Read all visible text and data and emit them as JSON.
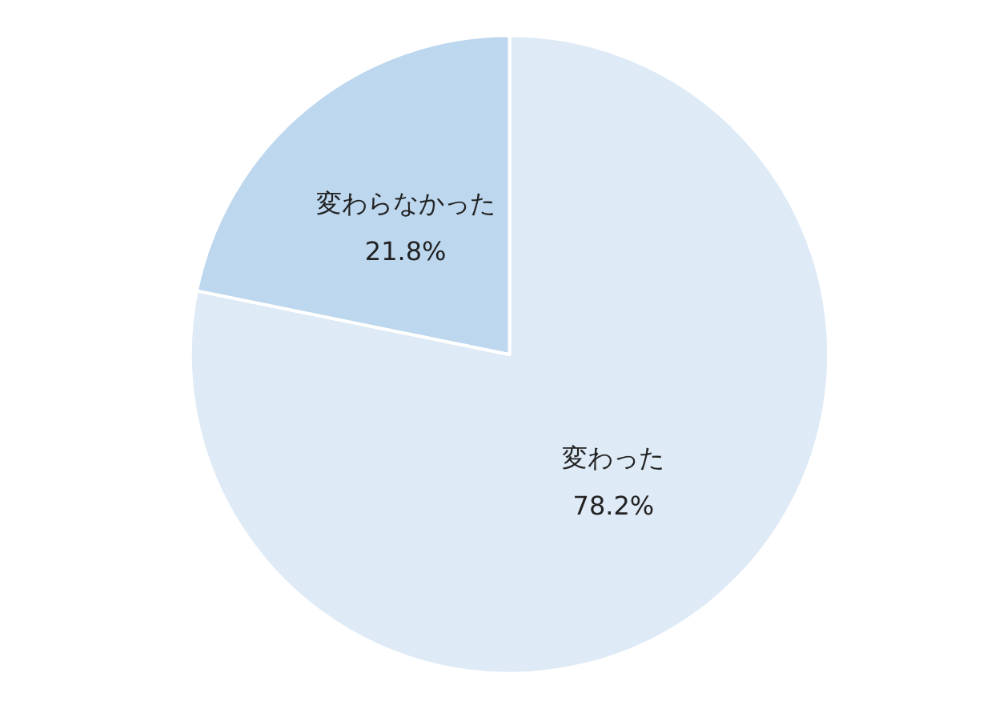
{
  "chart_data": {
    "type": "pie",
    "categories": [
      "変わった",
      "変わらなかった"
    ],
    "values": [
      78.2,
      21.8
    ],
    "colors": [
      "#deeaf6",
      "#bdd7ee"
    ],
    "value_labels": [
      "78.2%",
      "21.8%"
    ],
    "legend": false
  }
}
